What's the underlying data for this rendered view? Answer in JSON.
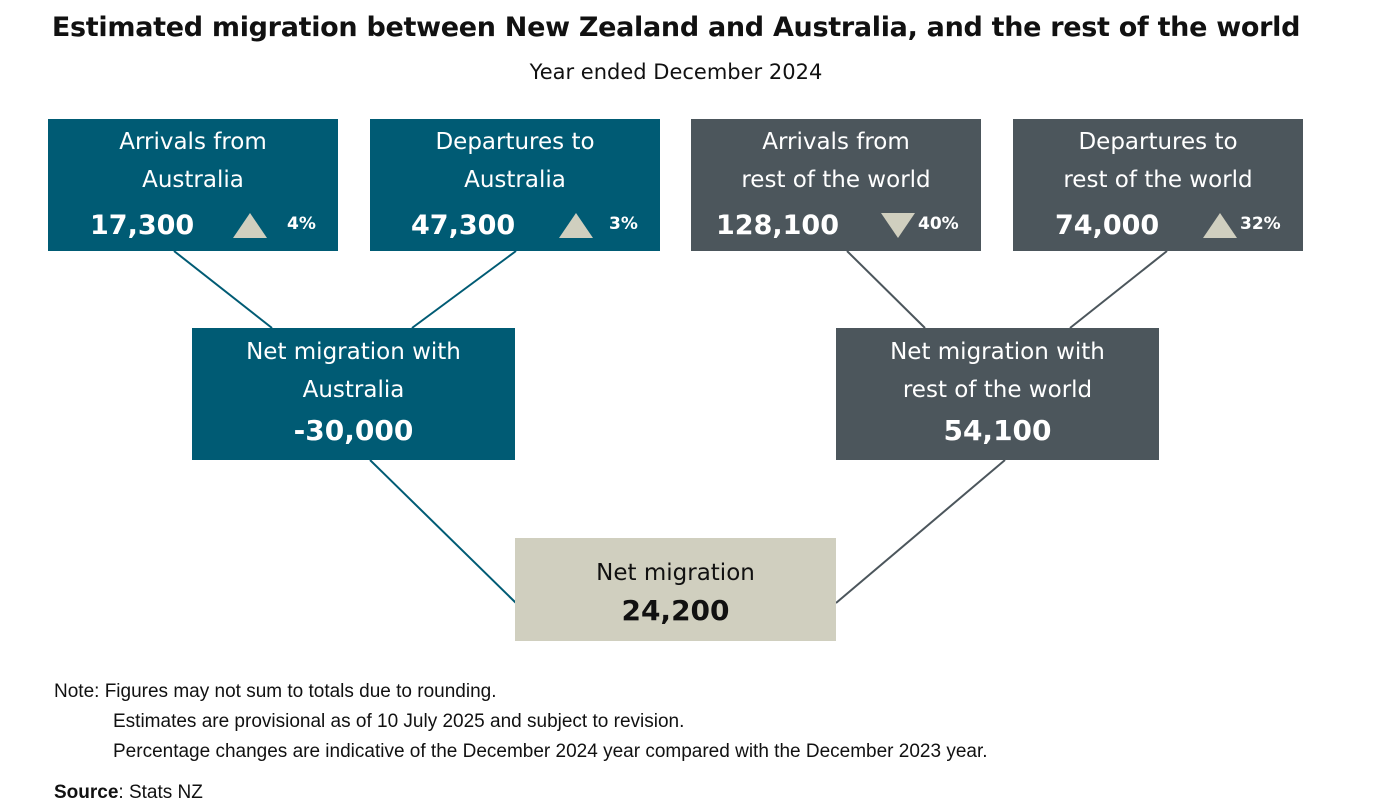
{
  "title": "Estimated migration between New Zealand and Australia, and the rest of the world",
  "subtitle": "Year ended December 2024",
  "boxes": {
    "arrivals_au": {
      "line1": "Arrivals from",
      "line2": "Australia",
      "value": "17,300",
      "direction": "up",
      "pct": "4%"
    },
    "departures_au": {
      "line1": "Departures to",
      "line2": "Australia",
      "value": "47,300",
      "direction": "up",
      "pct": "3%"
    },
    "arrivals_row": {
      "line1": "Arrivals from",
      "line2": "rest of the world",
      "value": "128,100",
      "direction": "down",
      "pct": "40%"
    },
    "departures_row": {
      "line1": "Departures to",
      "line2": "rest of the world",
      "value": "74,000",
      "direction": "up",
      "pct": "32%"
    },
    "net_au": {
      "line1": "Net migration with",
      "line2": "Australia",
      "value": "-30,000"
    },
    "net_row": {
      "line1": "Net migration with",
      "line2": "rest of the world",
      "value": "54,100"
    },
    "net_total": {
      "label": "Net migration",
      "value": "24,200"
    }
  },
  "colors": {
    "australia": "#005b74",
    "rest_of_world": "#4c565c",
    "total": "#d0cfbf"
  },
  "icons": {
    "increase": "triangle-up-icon",
    "decrease": "triangle-down-icon"
  },
  "notes": {
    "line1": "Note: Figures may not sum to totals due to rounding.",
    "line2": "Estimates are provisional as of 10 July 2025 and subject to revision.",
    "line3": "Percentage changes are indicative of the December 2024 year compared with the December 2023 year."
  },
  "source": {
    "label": "Source",
    "value": ": Stats NZ"
  }
}
